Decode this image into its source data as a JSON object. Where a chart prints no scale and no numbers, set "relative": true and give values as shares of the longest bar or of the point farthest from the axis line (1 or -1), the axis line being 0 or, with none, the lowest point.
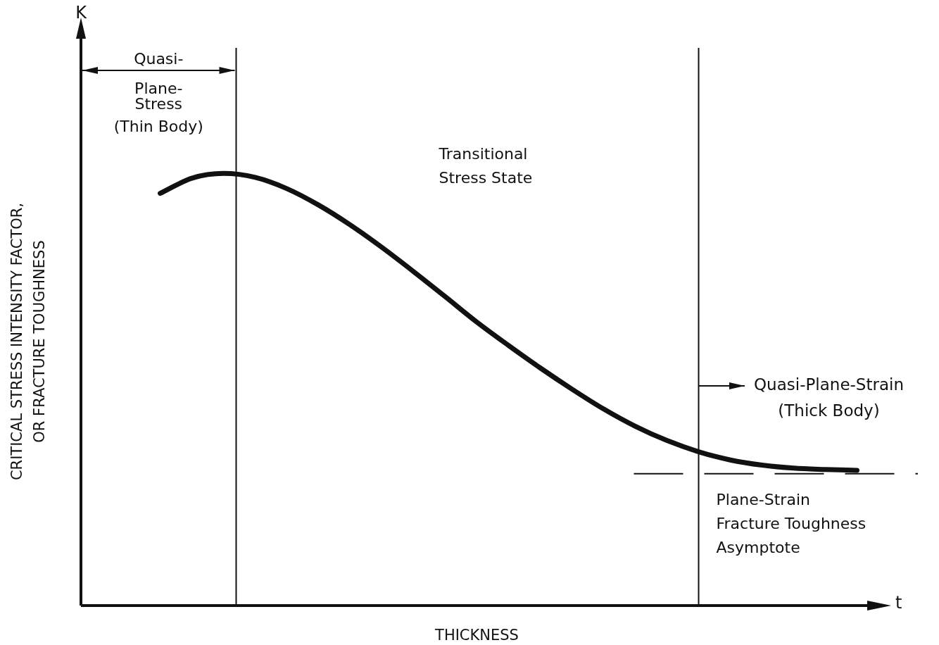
{
  "chart_data": {
    "type": "line",
    "xlabel": "THICKNESS",
    "ylabel": "CRITICAL STRESS INTENSITY FACTOR,\nOR FRACTURE TOUGHNESS",
    "categories": [
      null,
      null,
      null,
      null,
      null,
      null,
      null,
      null,
      null,
      null,
      null,
      null,
      null,
      null,
      null,
      null,
      null,
      null,
      null,
      null,
      null,
      null,
      null,
      null,
      null
    ],
    "values": [
      null,
      null,
      0.954,
      0.989,
      1,
      0.991,
      0.965,
      0.927,
      0.881,
      0.829,
      0.773,
      0.715,
      0.656,
      0.602,
      0.55,
      0.501,
      0.455,
      0.415,
      0.382,
      0.356,
      0.337,
      0.325,
      0.318,
      0.315,
      0.313
    ],
    "color": "#111111",
    "relative": true,
    "marker": "none",
    "line_style": "solid",
    "ref_lines": [
      {
        "axis": "y",
        "value": 0.305,
        "label": "Plane-Strain\nFracture Toughness\nAsymptote",
        "line_style": "dashed"
      }
    ],
    "annotations": [
      "K",
      "t",
      "Transitional\nStress State",
      "Quasi-\nPlane-\nStress\n(Thin Body)",
      "Quasi-Plane-Strain\n(Thick Body)"
    ]
  }
}
